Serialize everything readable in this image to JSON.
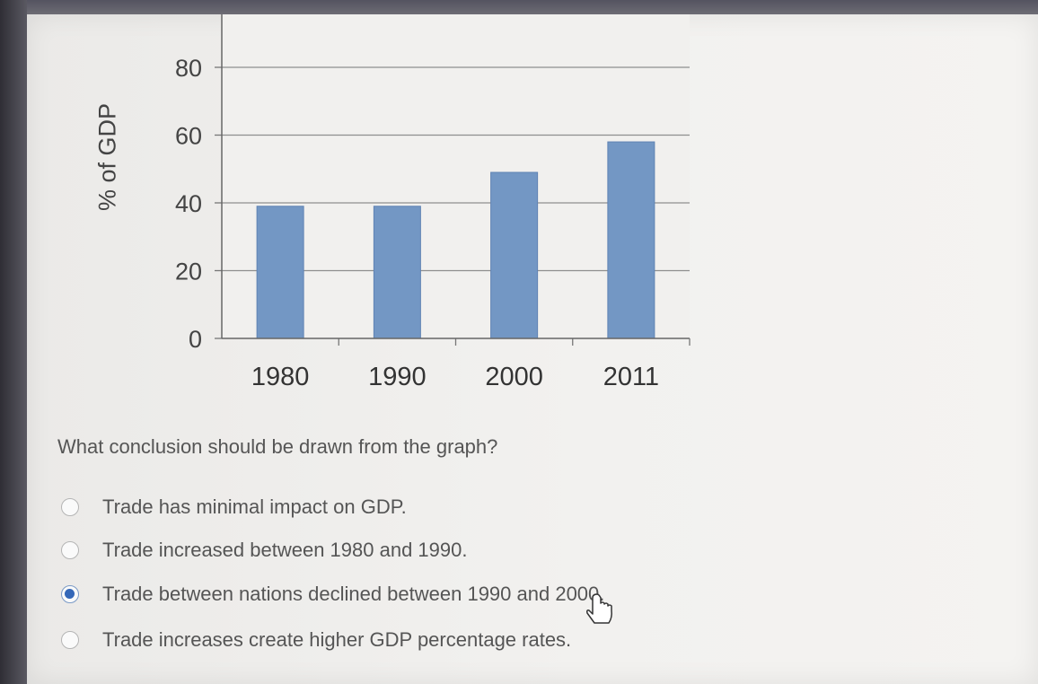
{
  "chart_data": {
    "type": "bar",
    "categories": [
      "1980",
      "1990",
      "2000",
      "2011"
    ],
    "values": [
      39,
      39,
      49,
      58
    ],
    "ylabel": "% of GDP",
    "yticks": [
      "0",
      "20",
      "40",
      "60",
      "80"
    ],
    "ylim": [
      0,
      80
    ],
    "grid": true,
    "bar_color": "#7397c4"
  },
  "question": {
    "text": "What conclusion should be drawn from the graph?"
  },
  "options": [
    {
      "label": "Trade has minimal impact on GDP.",
      "selected": false
    },
    {
      "label": "Trade increased between 1980 and 1990.",
      "selected": false
    },
    {
      "label": "Trade between nations declined between 1990 and 2000.",
      "selected": true
    },
    {
      "label": "Trade increases create higher GDP percentage rates.",
      "selected": false
    }
  ]
}
